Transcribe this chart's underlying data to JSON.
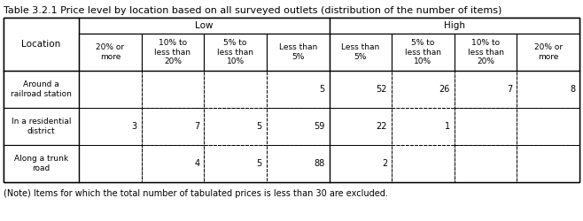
{
  "title": "Table 3.2.1 Price level by location based on all surveyed outlets (distribution of the number of items)",
  "note": "(Note) Items for which the total number of tabulated prices is less than 30 are excluded.",
  "col_headers_low": [
    "20% or\nmore",
    "10% to\nless than\n20%",
    "5% to\nless than\n10%",
    "Less than\n5%"
  ],
  "col_headers_high": [
    "Less than\n5%",
    "5% to\nless than\n10%",
    "10% to\nless than\n20%",
    "20% or\nmore"
  ],
  "row_labels": [
    "Around a\nrailroad station",
    "In a residential\ndistrict",
    "Along a trunk\nroad"
  ],
  "data": [
    [
      "",
      "",
      "",
      "5",
      "52",
      "26",
      "7",
      "8"
    ],
    [
      "3",
      "7",
      "5",
      "59",
      "22",
      "1",
      "",
      ""
    ],
    [
      "",
      "4",
      "5",
      "88",
      "2",
      "",
      "",
      ""
    ]
  ],
  "bg_color": "#ffffff",
  "text_color": "#000000",
  "font_size": 7.0,
  "title_font_size": 8.0,
  "note_font_size": 7.0
}
